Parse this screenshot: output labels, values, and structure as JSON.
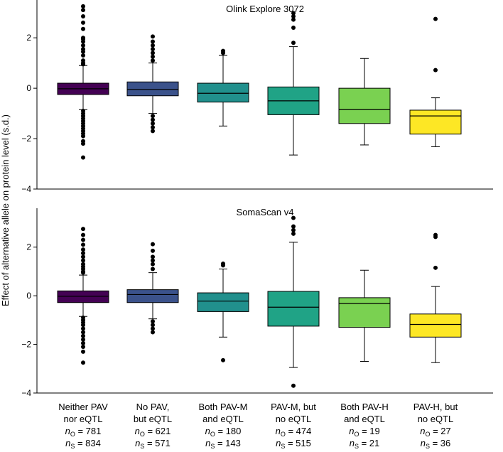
{
  "ylabel": "Effect of alternative allele on protein level (s.d.)",
  "categories": [
    {
      "line1": "Neither PAV",
      "line2": "nor eQTL",
      "n_o": "781",
      "n_s": "834"
    },
    {
      "line1": "No PAV,",
      "line2": "but eQTL",
      "n_o": "621",
      "n_s": "571"
    },
    {
      "line1": "Both PAV-M",
      "line2": "and eQTL",
      "n_o": "180",
      "n_s": "143"
    },
    {
      "line1": "PAV-M, but",
      "line2": "no eQTL",
      "n_o": "474",
      "n_s": "515"
    },
    {
      "line1": "Both PAV-H",
      "line2": "and eQTL",
      "n_o": "19",
      "n_s": "21"
    },
    {
      "line1": "PAV-H, but",
      "line2": "no eQTL",
      "n_o": "27",
      "n_s": "36"
    }
  ],
  "n_symbol": "n",
  "sub_o": "O",
  "sub_s": "S",
  "eq": " = ",
  "colors": [
    "#440154",
    "#3b528b",
    "#21908d",
    "#20a386",
    "#7ad151",
    "#fde725"
  ],
  "chart_data": [
    {
      "type": "box",
      "title": "Olink Explore 3072",
      "ylim": [
        -4,
        3.5
      ],
      "yticks": [
        -4,
        -2,
        0,
        2
      ],
      "ytick_labels": [
        "−4",
        "−2",
        "0",
        "2"
      ],
      "boxes": [
        {
          "q1": -0.25,
          "median": -0.02,
          "q3": 0.2,
          "whisker_low": -0.85,
          "whisker_high": 0.9,
          "outliers": [
            3.25,
            3.1,
            2.85,
            2.6,
            2.35,
            2.0,
            1.95,
            1.85,
            1.7,
            1.55,
            1.45,
            1.3,
            1.1,
            1.0,
            0.95,
            -0.9,
            -1.0,
            -1.1,
            -1.2,
            -1.3,
            -1.4,
            -1.5,
            -1.6,
            -1.7,
            -1.8,
            -1.9,
            -2.1,
            -2.2,
            -2.75
          ]
        },
        {
          "q1": -0.3,
          "median": -0.05,
          "q3": 0.25,
          "whisker_low": -1.0,
          "whisker_high": 1.0,
          "outliers": [
            2.05,
            1.85,
            1.7,
            1.55,
            1.4,
            1.25,
            1.1,
            -1.1,
            -1.25,
            -1.4,
            -1.55,
            -1.7
          ]
        },
        {
          "q1": -0.55,
          "median": -0.2,
          "q3": 0.2,
          "whisker_low": -1.5,
          "whisker_high": 1.3,
          "outliers": [
            1.48,
            1.4
          ]
        },
        {
          "q1": -1.05,
          "median": -0.5,
          "q3": 0.05,
          "whisker_low": -2.65,
          "whisker_high": 1.65,
          "outliers": [
            2.98,
            2.85,
            2.72,
            2.4,
            1.8
          ]
        },
        {
          "q1": -1.4,
          "median": -0.85,
          "q3": 0.0,
          "whisker_low": -2.25,
          "whisker_high": 1.18,
          "outliers": []
        },
        {
          "q1": -1.82,
          "median": -1.1,
          "q3": -0.87,
          "whisker_low": -2.32,
          "whisker_high": -0.38,
          "outliers": [
            2.75,
            0.72
          ]
        }
      ]
    },
    {
      "type": "box",
      "title": "SomaScan v4",
      "ylim": [
        -4,
        3.6
      ],
      "yticks": [
        -4,
        -2,
        0,
        2
      ],
      "ytick_labels": [
        "−4",
        "−2",
        "0",
        "2"
      ],
      "boxes": [
        {
          "q1": -0.28,
          "median": -0.02,
          "q3": 0.2,
          "whisker_low": -0.85,
          "whisker_high": 0.85,
          "outliers": [
            2.75,
            2.5,
            2.3,
            2.1,
            1.9,
            1.75,
            1.6,
            1.45,
            1.3,
            1.2,
            1.1,
            1.0,
            0.95,
            -0.9,
            -1.0,
            -1.1,
            -1.2,
            -1.35,
            -1.5,
            -1.65,
            -1.8,
            -1.95,
            -2.1,
            -2.3,
            -2.75
          ]
        },
        {
          "q1": -0.28,
          "median": 0.05,
          "q3": 0.25,
          "whisker_low": -0.95,
          "whisker_high": 0.95,
          "outliers": [
            2.12,
            1.85,
            1.6,
            1.45,
            1.3,
            1.1,
            -1.05,
            -1.2,
            -1.35,
            -1.5
          ]
        },
        {
          "q1": -0.65,
          "median": -0.22,
          "q3": 0.12,
          "whisker_low": -1.7,
          "whisker_high": 1.1,
          "outliers": [
            1.32,
            1.25,
            -2.65
          ]
        },
        {
          "q1": -1.25,
          "median": -0.47,
          "q3": 0.18,
          "whisker_low": -2.95,
          "whisker_high": 2.2,
          "outliers": [
            3.2,
            2.85,
            2.7,
            2.55,
            -3.7
          ]
        },
        {
          "q1": -1.3,
          "median": -0.32,
          "q3": -0.08,
          "whisker_low": -2.7,
          "whisker_high": 1.05,
          "outliers": []
        },
        {
          "q1": -1.7,
          "median": -1.18,
          "q3": -0.75,
          "whisker_low": -2.75,
          "whisker_high": 0.38,
          "outliers": [
            2.5,
            2.42,
            1.15
          ]
        }
      ]
    }
  ]
}
